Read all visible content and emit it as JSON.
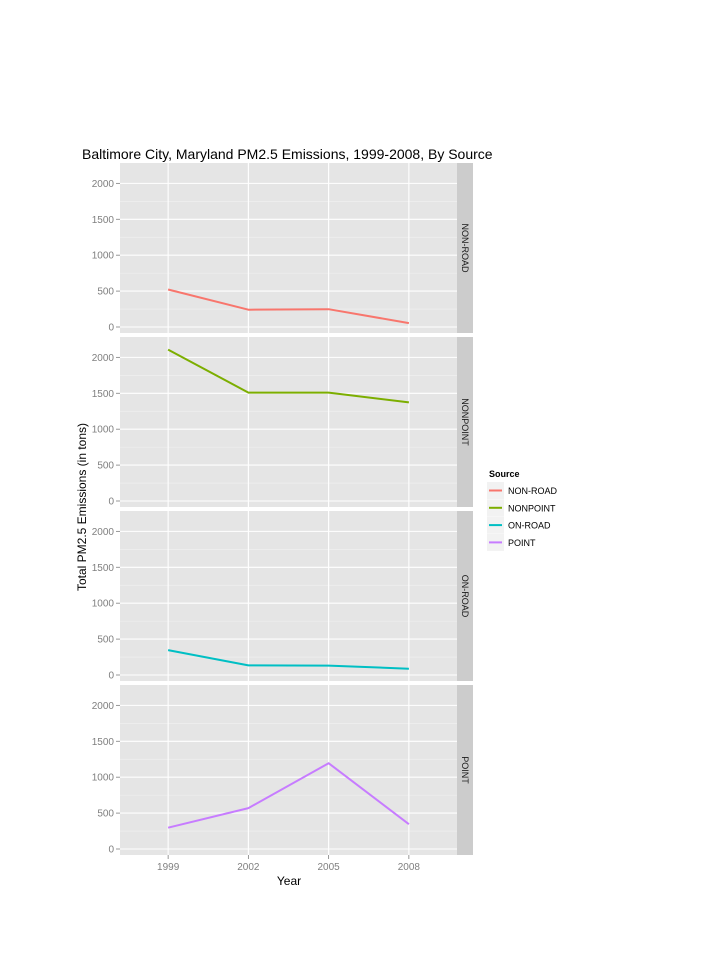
{
  "chart_data": {
    "type": "line",
    "title": "Baltimore City, Maryland PM2.5 Emissions, 1999-2008, By Source",
    "xlabel": "Year",
    "ylabel": "Total PM2.5 Emissions (in tons)",
    "x": [
      1999,
      2002,
      2005,
      2008
    ],
    "x_tick_labels": [
      "1999",
      "2002",
      "2005",
      "2008"
    ],
    "ylim": [
      0,
      2200
    ],
    "y_ticks": [
      0,
      500,
      1000,
      1500,
      2000
    ],
    "facets": "rows by source, shared y scale",
    "legend": {
      "title": "Source",
      "position": "right"
    },
    "series": [
      {
        "name": "NON-ROAD",
        "color": "#F8766D",
        "values": [
          522,
          241,
          248,
          55
        ]
      },
      {
        "name": "NONPOINT",
        "color": "#7CAE00",
        "values": [
          2108,
          1510,
          1510,
          1373
        ]
      },
      {
        "name": "ON-ROAD",
        "color": "#00BFC4",
        "values": [
          347,
          134,
          131,
          88
        ]
      },
      {
        "name": "POINT",
        "color": "#C77CFF",
        "values": [
          297,
          570,
          1195,
          345
        ]
      }
    ]
  }
}
